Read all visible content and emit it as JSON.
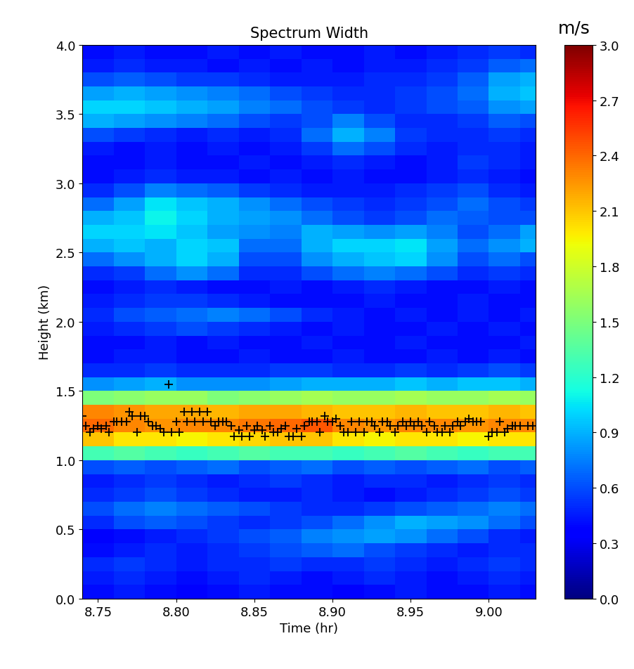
{
  "chart_data": {
    "type": "heatmap",
    "title": "Spectrum Width",
    "x_label": "Time (hr)",
    "y_label": "Height (km)",
    "color": "jet",
    "xlim": [
      8.74,
      9.03
    ],
    "ylim": [
      0,
      4
    ],
    "xticks": [
      {
        "value": 8.75,
        "label": "8.75"
      },
      {
        "value": 8.8,
        "label": "8.80"
      },
      {
        "value": 8.85,
        "label": "8.85"
      },
      {
        "value": 8.9,
        "label": "8.90"
      },
      {
        "value": 8.95,
        "label": "8.95"
      },
      {
        "value": 9.0,
        "label": "9.00"
      }
    ],
    "yticks": [
      {
        "value": 0,
        "label": "0.0"
      },
      0.5,
      {
        "value": 1,
        "label": "1.0"
      },
      1.5,
      {
        "value": 2,
        "label": "2.0"
      },
      2.5,
      {
        "value": 3,
        "label": "3.0"
      },
      3.5,
      {
        "value": 4,
        "label": "4.0"
      }
    ],
    "cell_x_edges": [
      8.74,
      8.76,
      8.78,
      8.8,
      8.82,
      8.84,
      8.86,
      8.88,
      8.9,
      8.92,
      8.94,
      8.96,
      8.98,
      9.0,
      9.02,
      9.03
    ],
    "cell_y_edges": [
      0.0,
      0.1,
      0.2,
      0.3,
      0.4,
      0.5,
      0.6,
      0.7,
      0.8,
      0.9,
      1.0,
      1.1,
      1.2,
      1.3,
      1.4,
      1.5,
      1.6,
      1.7,
      1.8,
      1.9,
      2.0,
      2.1,
      2.2,
      2.3,
      2.4,
      2.5,
      2.6,
      2.7,
      2.8,
      2.9,
      3.0,
      3.1,
      3.2,
      3.3,
      3.4,
      3.5,
      3.6,
      3.7,
      3.8,
      3.9,
      4.0
    ],
    "cells": [
      [
        0.4,
        0.45,
        0.4,
        0.35,
        0.4,
        0.45,
        0.4,
        0.4,
        0.35,
        0.4,
        0.45,
        0.4,
        0.4,
        0.45,
        0.4
      ],
      [
        0.45,
        0.5,
        0.45,
        0.4,
        0.45,
        0.5,
        0.45,
        0.4,
        0.45,
        0.5,
        0.45,
        0.4,
        0.45,
        0.5,
        0.45
      ],
      [
        0.5,
        0.55,
        0.5,
        0.45,
        0.5,
        0.5,
        0.55,
        0.5,
        0.5,
        0.55,
        0.5,
        0.45,
        0.5,
        0.55,
        0.5
      ],
      [
        0.4,
        0.45,
        0.5,
        0.45,
        0.5,
        0.55,
        0.6,
        0.65,
        0.7,
        0.6,
        0.55,
        0.5,
        0.45,
        0.5,
        0.5
      ],
      [
        0.35,
        0.4,
        0.45,
        0.5,
        0.55,
        0.6,
        0.65,
        0.75,
        0.8,
        0.85,
        0.8,
        0.7,
        0.6,
        0.5,
        0.45
      ],
      [
        0.5,
        0.6,
        0.65,
        0.6,
        0.55,
        0.5,
        0.55,
        0.6,
        0.7,
        0.8,
        0.9,
        0.85,
        0.8,
        0.7,
        0.6
      ],
      [
        0.6,
        0.7,
        0.75,
        0.7,
        0.65,
        0.6,
        0.55,
        0.5,
        0.5,
        0.55,
        0.6,
        0.65,
        0.7,
        0.75,
        0.7
      ],
      [
        0.5,
        0.55,
        0.6,
        0.55,
        0.5,
        0.45,
        0.45,
        0.5,
        0.45,
        0.4,
        0.45,
        0.5,
        0.55,
        0.6,
        0.55
      ],
      [
        0.45,
        0.5,
        0.55,
        0.5,
        0.45,
        0.5,
        0.55,
        0.5,
        0.45,
        0.5,
        0.5,
        0.45,
        0.5,
        0.55,
        0.5
      ],
      [
        0.6,
        0.65,
        0.6,
        0.65,
        0.7,
        0.6,
        0.65,
        0.7,
        0.6,
        0.65,
        0.6,
        0.65,
        0.7,
        0.6,
        0.65
      ],
      [
        1.3,
        1.35,
        1.3,
        1.25,
        1.3,
        1.35,
        1.3,
        1.3,
        1.25,
        1.3,
        1.35,
        1.3,
        1.25,
        1.3,
        1.3
      ],
      [
        2.1,
        2.0,
        2.0,
        1.95,
        2.0,
        2.05,
        2.1,
        2.1,
        2.0,
        1.95,
        2.0,
        2.0,
        1.95,
        2.0,
        2.0
      ],
      [
        2.4,
        2.3,
        2.25,
        2.3,
        2.3,
        2.35,
        2.4,
        2.45,
        2.3,
        2.25,
        2.3,
        2.3,
        2.25,
        2.3,
        2.3
      ],
      [
        2.3,
        2.25,
        2.2,
        2.2,
        2.15,
        2.2,
        2.2,
        2.15,
        2.1,
        2.1,
        2.15,
        2.1,
        2.1,
        2.15,
        2.1
      ],
      [
        1.5,
        1.55,
        1.6,
        1.6,
        1.5,
        1.55,
        1.6,
        1.65,
        1.6,
        1.6,
        1.65,
        1.6,
        1.6,
        1.65,
        1.6
      ],
      [
        0.8,
        0.85,
        0.9,
        0.8,
        0.8,
        0.8,
        0.85,
        0.9,
        0.9,
        0.9,
        0.95,
        0.9,
        0.95,
        0.95,
        0.9
      ],
      [
        0.5,
        0.5,
        0.55,
        0.5,
        0.5,
        0.5,
        0.55,
        0.55,
        0.5,
        0.5,
        0.55,
        0.5,
        0.55,
        0.6,
        0.55
      ],
      [
        0.4,
        0.45,
        0.45,
        0.4,
        0.4,
        0.45,
        0.4,
        0.4,
        0.45,
        0.4,
        0.4,
        0.45,
        0.4,
        0.45,
        0.4
      ],
      [
        0.4,
        0.4,
        0.45,
        0.4,
        0.45,
        0.4,
        0.4,
        0.45,
        0.4,
        0.4,
        0.45,
        0.4,
        0.4,
        0.4,
        0.45
      ],
      [
        0.45,
        0.5,
        0.55,
        0.6,
        0.55,
        0.5,
        0.45,
        0.4,
        0.45,
        0.4,
        0.4,
        0.45,
        0.4,
        0.45,
        0.4
      ],
      [
        0.5,
        0.6,
        0.65,
        0.7,
        0.75,
        0.7,
        0.6,
        0.5,
        0.45,
        0.4,
        0.45,
        0.4,
        0.45,
        0.4,
        0.45
      ],
      [
        0.45,
        0.5,
        0.55,
        0.55,
        0.5,
        0.45,
        0.4,
        0.4,
        0.4,
        0.45,
        0.4,
        0.4,
        0.45,
        0.4,
        0.4
      ],
      [
        0.4,
        0.45,
        0.5,
        0.45,
        0.4,
        0.4,
        0.45,
        0.4,
        0.45,
        0.5,
        0.45,
        0.4,
        0.4,
        0.45,
        0.4
      ],
      [
        0.5,
        0.55,
        0.7,
        0.8,
        0.7,
        0.5,
        0.5,
        0.6,
        0.7,
        0.75,
        0.7,
        0.6,
        0.5,
        0.55,
        0.5
      ],
      [
        0.7,
        0.8,
        0.9,
        1.0,
        0.9,
        0.6,
        0.6,
        0.8,
        0.9,
        0.95,
        1.0,
        0.8,
        0.6,
        0.7,
        0.6
      ],
      [
        0.9,
        0.95,
        0.9,
        1.0,
        0.95,
        0.7,
        0.7,
        0.9,
        1.0,
        1.0,
        1.05,
        0.85,
        0.7,
        0.8,
        0.9
      ],
      [
        1.0,
        1.0,
        1.05,
        0.95,
        0.85,
        0.8,
        0.75,
        0.9,
        0.85,
        0.8,
        0.85,
        0.75,
        0.6,
        0.7,
        0.85
      ],
      [
        0.9,
        0.95,
        1.1,
        1.0,
        0.9,
        0.85,
        0.8,
        0.7,
        0.6,
        0.55,
        0.6,
        0.7,
        0.65,
        0.6,
        0.6
      ],
      [
        0.7,
        0.85,
        1.05,
        0.95,
        0.9,
        0.8,
        0.7,
        0.6,
        0.55,
        0.5,
        0.55,
        0.6,
        0.7,
        0.6,
        0.55
      ],
      [
        0.5,
        0.6,
        0.75,
        0.7,
        0.65,
        0.55,
        0.5,
        0.45,
        0.45,
        0.45,
        0.5,
        0.55,
        0.6,
        0.5,
        0.45
      ],
      [
        0.4,
        0.45,
        0.5,
        0.45,
        0.45,
        0.4,
        0.45,
        0.4,
        0.45,
        0.4,
        0.4,
        0.45,
        0.5,
        0.45,
        0.4
      ],
      [
        0.4,
        0.4,
        0.45,
        0.4,
        0.4,
        0.45,
        0.4,
        0.45,
        0.5,
        0.45,
        0.4,
        0.45,
        0.55,
        0.5,
        0.45
      ],
      [
        0.45,
        0.4,
        0.45,
        0.4,
        0.45,
        0.4,
        0.45,
        0.55,
        0.7,
        0.6,
        0.5,
        0.45,
        0.5,
        0.5,
        0.45
      ],
      [
        0.6,
        0.55,
        0.5,
        0.45,
        0.5,
        0.45,
        0.5,
        0.7,
        0.9,
        0.75,
        0.55,
        0.5,
        0.5,
        0.55,
        0.5
      ],
      [
        0.9,
        0.85,
        0.8,
        0.75,
        0.7,
        0.6,
        0.55,
        0.6,
        0.75,
        0.6,
        0.5,
        0.5,
        0.55,
        0.65,
        0.6
      ],
      [
        1.0,
        1.0,
        0.95,
        0.9,
        0.85,
        0.75,
        0.7,
        0.6,
        0.55,
        0.5,
        0.55,
        0.6,
        0.65,
        0.8,
        0.85
      ],
      [
        0.85,
        0.9,
        0.85,
        0.8,
        0.75,
        0.7,
        0.6,
        0.55,
        0.5,
        0.5,
        0.55,
        0.6,
        0.7,
        0.9,
        0.95
      ],
      [
        0.6,
        0.65,
        0.6,
        0.55,
        0.55,
        0.5,
        0.45,
        0.45,
        0.45,
        0.5,
        0.5,
        0.55,
        0.65,
        0.85,
        0.9
      ],
      [
        0.45,
        0.5,
        0.45,
        0.45,
        0.4,
        0.45,
        0.4,
        0.45,
        0.4,
        0.45,
        0.45,
        0.5,
        0.55,
        0.65,
        0.7
      ],
      [
        0.4,
        0.45,
        0.4,
        0.4,
        0.45,
        0.4,
        0.45,
        0.4,
        0.4,
        0.45,
        0.4,
        0.45,
        0.5,
        0.55,
        0.5
      ]
    ],
    "colorbar_label": "m/s",
    "colorbar_lim": [
      0,
      3
    ],
    "colorbar_ticks": [
      {
        "value": 0,
        "label": "0.0"
      },
      0.3,
      0.6,
      0.9,
      1.2,
      1.5,
      1.8,
      2.1,
      2.4,
      2.7,
      {
        "value": 3,
        "label": "3.0"
      }
    ],
    "series": [
      {
        "type": "scatter",
        "color": "black",
        "marker": "plus",
        "x": [
          8.74,
          8.742,
          8.745,
          8.747,
          8.75,
          8.752,
          8.755,
          8.757,
          8.76,
          8.762,
          8.765,
          8.768,
          8.77,
          8.772,
          8.775,
          8.777,
          8.78,
          8.782,
          8.785,
          8.787,
          8.79,
          8.792,
          8.795,
          8.797,
          8.8,
          8.802,
          8.805,
          8.807,
          8.81,
          8.812,
          8.815,
          8.817,
          8.82,
          8.822,
          8.825,
          8.827,
          8.83,
          8.832,
          8.835,
          8.837,
          8.84,
          8.842,
          8.845,
          8.847,
          8.85,
          8.852,
          8.855,
          8.857,
          8.86,
          8.862,
          8.865,
          8.867,
          8.87,
          8.872,
          8.875,
          8.877,
          8.88,
          8.882,
          8.885,
          8.887,
          8.89,
          8.892,
          8.895,
          8.897,
          8.9,
          8.902,
          8.905,
          8.907,
          8.91,
          8.912,
          8.915,
          8.917,
          8.92,
          8.922,
          8.925,
          8.927,
          8.93,
          8.932,
          8.935,
          8.937,
          8.94,
          8.942,
          8.945,
          8.947,
          8.95,
          8.952,
          8.955,
          8.957,
          8.96,
          8.962,
          8.965,
          8.967,
          8.97,
          8.972,
          8.975,
          8.977,
          8.98,
          8.982,
          8.985,
          8.987,
          8.99,
          8.992,
          8.995,
          9.0,
          9.002,
          9.005,
          9.007,
          9.01,
          9.012,
          9.015,
          9.017,
          9.02,
          9.025,
          9.028
        ],
        "values": [
          1.32,
          1.25,
          1.2,
          1.23,
          1.25,
          1.23,
          1.25,
          1.2,
          1.28,
          1.28,
          1.28,
          1.28,
          1.35,
          1.32,
          1.2,
          1.32,
          1.32,
          1.28,
          1.25,
          1.25,
          1.23,
          1.2,
          1.55,
          1.2,
          1.28,
          1.2,
          1.35,
          1.28,
          1.35,
          1.28,
          1.35,
          1.28,
          1.35,
          1.28,
          1.25,
          1.28,
          1.28,
          1.28,
          1.25,
          1.17,
          1.22,
          1.17,
          1.25,
          1.17,
          1.22,
          1.25,
          1.22,
          1.17,
          1.25,
          1.2,
          1.2,
          1.23,
          1.25,
          1.17,
          1.17,
          1.23,
          1.17,
          1.25,
          1.28,
          1.28,
          1.28,
          1.2,
          1.32,
          1.28,
          1.28,
          1.3,
          1.25,
          1.2,
          1.2,
          1.28,
          1.2,
          1.28,
          1.2,
          1.28,
          1.28,
          1.25,
          1.2,
          1.28,
          1.28,
          1.25,
          1.2,
          1.25,
          1.28,
          1.25,
          1.28,
          1.25,
          1.28,
          1.25,
          1.2,
          1.28,
          1.25,
          1.2,
          1.2,
          1.25,
          1.2,
          1.25,
          1.28,
          1.25,
          1.28,
          1.3,
          1.28,
          1.28,
          1.28,
          1.17,
          1.2,
          1.2,
          1.28,
          1.2,
          1.23,
          1.25,
          1.25,
          1.25,
          1.25,
          1.25
        ]
      }
    ]
  }
}
